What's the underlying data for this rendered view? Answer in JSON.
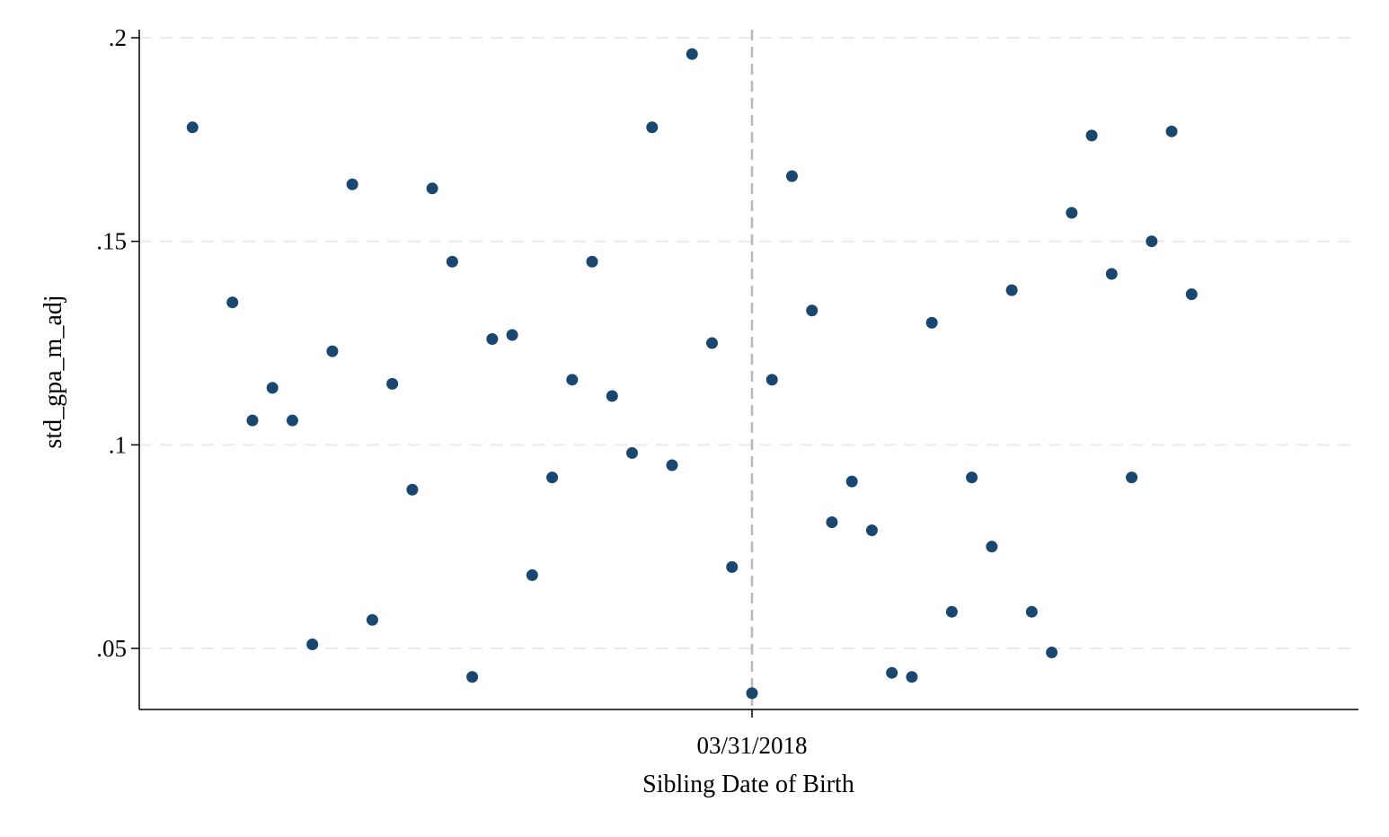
{
  "chart_data": {
    "type": "scatter",
    "title": "",
    "xlabel": "Sibling Date of Birth",
    "ylabel": "std_gpa_m_adj",
    "x_ticks": [
      {
        "value": 0,
        "label": "03/31/2018"
      }
    ],
    "y_ticks": [
      {
        "value": 0.05,
        "label": ".05"
      },
      {
        "value": 0.1,
        "label": ".1"
      },
      {
        "value": 0.15,
        "label": ".15"
      },
      {
        "value": 0.2,
        "label": ".2"
      }
    ],
    "xlim": [
      -29,
      29
    ],
    "ylim": [
      0.035,
      0.202
    ],
    "cutoff_x": 0,
    "grid": "horizontal-dashed",
    "legend": "none",
    "colors": {
      "marker": "#1a476f",
      "axis": "#000000",
      "grid": "#eaeaea",
      "cutoff": "#b8b8b8"
    },
    "points": [
      {
        "x": -28,
        "y": 0.178
      },
      {
        "x": -26,
        "y": 0.135
      },
      {
        "x": -25,
        "y": 0.106
      },
      {
        "x": -24,
        "y": 0.114
      },
      {
        "x": -23,
        "y": 0.106
      },
      {
        "x": -22,
        "y": 0.051
      },
      {
        "x": -21,
        "y": 0.123
      },
      {
        "x": -20,
        "y": 0.164
      },
      {
        "x": -19,
        "y": 0.057
      },
      {
        "x": -18,
        "y": 0.115
      },
      {
        "x": -17,
        "y": 0.089
      },
      {
        "x": -16,
        "y": 0.163
      },
      {
        "x": -15,
        "y": 0.145
      },
      {
        "x": -14,
        "y": 0.043
      },
      {
        "x": -13,
        "y": 0.126
      },
      {
        "x": -12,
        "y": 0.127
      },
      {
        "x": -11,
        "y": 0.068
      },
      {
        "x": -10,
        "y": 0.092
      },
      {
        "x": -9,
        "y": 0.116
      },
      {
        "x": -8,
        "y": 0.145
      },
      {
        "x": -7,
        "y": 0.112
      },
      {
        "x": -6,
        "y": 0.098
      },
      {
        "x": -5,
        "y": 0.178
      },
      {
        "x": -4,
        "y": 0.095
      },
      {
        "x": -3,
        "y": 0.196
      },
      {
        "x": -2,
        "y": 0.125
      },
      {
        "x": -1,
        "y": 0.07
      },
      {
        "x": 0,
        "y": 0.039
      },
      {
        "x": 1,
        "y": 0.116
      },
      {
        "x": 2,
        "y": 0.166
      },
      {
        "x": 3,
        "y": 0.133
      },
      {
        "x": 4,
        "y": 0.081
      },
      {
        "x": 5,
        "y": 0.091
      },
      {
        "x": 6,
        "y": 0.079
      },
      {
        "x": 7,
        "y": 0.044
      },
      {
        "x": 8,
        "y": 0.043
      },
      {
        "x": 9,
        "y": 0.13
      },
      {
        "x": 10,
        "y": 0.059
      },
      {
        "x": 11,
        "y": 0.092
      },
      {
        "x": 12,
        "y": 0.075
      },
      {
        "x": 13,
        "y": 0.138
      },
      {
        "x": 14,
        "y": 0.059
      },
      {
        "x": 15,
        "y": 0.049
      },
      {
        "x": 16,
        "y": 0.157
      },
      {
        "x": 17,
        "y": 0.176
      },
      {
        "x": 18,
        "y": 0.142
      },
      {
        "x": 19,
        "y": 0.092
      },
      {
        "x": 20,
        "y": 0.15
      },
      {
        "x": 21,
        "y": 0.177
      },
      {
        "x": 22,
        "y": 0.137
      }
    ]
  }
}
